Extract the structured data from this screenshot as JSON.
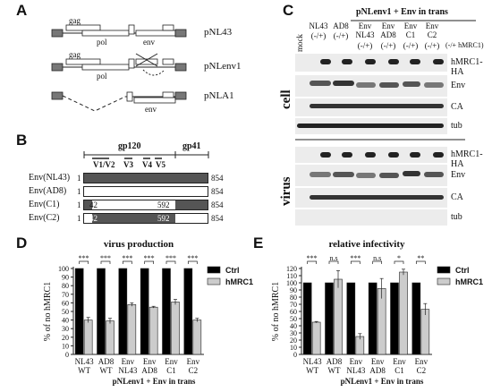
{
  "panels": {
    "A": "A",
    "B": "B",
    "C": "C",
    "D": "D",
    "E": "E"
  },
  "panelA": {
    "constructs": [
      {
        "name": "pNL43",
        "labels": [
          "gag",
          "pol",
          "env"
        ]
      },
      {
        "name": "pNLenv1",
        "labels": [
          "gag",
          "pol"
        ]
      },
      {
        "name": "pNLA1",
        "labels": [
          "env"
        ]
      }
    ]
  },
  "panelB": {
    "top_labels": {
      "gp120": "gp120",
      "gp41": "gp41",
      "v12": "V1/V2",
      "v3": "V3",
      "v4": "V4",
      "v5": "V5"
    },
    "rows": [
      {
        "name": "Env(NL43)",
        "start": "1",
        "end": "854",
        "segment_fill": "#555555"
      },
      {
        "name": "Env(AD8)",
        "start": "1",
        "end": "854",
        "segment_fill": "#ffffff"
      },
      {
        "name": "Env(C1)",
        "start": "1",
        "end": "854",
        "mid_start": "42",
        "mid_end": "592"
      },
      {
        "name": "Env(C2)",
        "start": "1",
        "end": "854",
        "mid_start": "42",
        "mid_end": "592"
      }
    ]
  },
  "panelC": {
    "header": "pNLenv1 + Env in trans",
    "lanes": [
      {
        "top": "",
        "bottom": "mock"
      },
      {
        "top": "NL43",
        "bottom": "(-/+)"
      },
      {
        "top": "AD8",
        "bottom": "(-/+)"
      },
      {
        "top": "Env NL43",
        "bottom": "(-/+)"
      },
      {
        "top": "Env AD8",
        "bottom": "(-/+)"
      },
      {
        "top": "Env C1",
        "bottom": "(-/+)"
      },
      {
        "top": "Env C2",
        "bottom": "(-/+)"
      }
    ],
    "lane_suffix": "(-/+ hMRC1)",
    "sections": {
      "cell": "cell",
      "virus": "virus"
    },
    "cell_bands": [
      "hMRC1-HA",
      "Env",
      "CA",
      "tub"
    ],
    "virus_bands": [
      "hMRC1-HA",
      "Env",
      "CA",
      "tub"
    ]
  },
  "chart_data": [
    {
      "type": "bar",
      "title": "virus production",
      "ylabel": "% of no hMRC1",
      "ylim": [
        0,
        100
      ],
      "yticks": [
        0,
        10,
        20,
        30,
        40,
        50,
        60,
        70,
        80,
        90,
        100
      ],
      "categories": [
        "NL43 WT",
        "AD8 WT",
        "Env NL43",
        "Env AD8",
        "Env C1",
        "Env C2"
      ],
      "series": [
        {
          "name": "Ctrl",
          "color": "#000000",
          "values": [
            100,
            100,
            100,
            100,
            100,
            100
          ]
        },
        {
          "name": "hMRC1",
          "color": "#cccccc",
          "values": [
            40,
            39,
            58,
            55,
            61,
            40
          ],
          "errors": [
            3,
            3,
            2,
            1,
            3,
            2
          ]
        }
      ],
      "significance": [
        "***",
        "***",
        "***",
        "***",
        "***",
        "***"
      ],
      "xfooter": "pNLenv1 + Env in trans"
    },
    {
      "type": "bar",
      "title": "relative infectivity",
      "ylabel": "% of no hMRC1",
      "ylim": [
        0,
        120
      ],
      "yticks": [
        0,
        10,
        20,
        30,
        40,
        50,
        60,
        70,
        80,
        90,
        100,
        110,
        120
      ],
      "categories": [
        "NL43 WT",
        "AD8 WT",
        "Env NL43",
        "Env AD8",
        "Env C1",
        "Env C2"
      ],
      "series": [
        {
          "name": "Ctrl",
          "color": "#000000",
          "values": [
            100,
            100,
            100,
            100,
            100,
            100
          ]
        },
        {
          "name": "hMRC1",
          "color": "#cccccc",
          "values": [
            45,
            105,
            25,
            92,
            115,
            63
          ],
          "errors": [
            1,
            12,
            4,
            14,
            4,
            8
          ]
        }
      ],
      "significance": [
        "***",
        "n.s",
        "***",
        "n.s",
        "*",
        "**"
      ],
      "xfooter": "pNLenv1 + Env in trans"
    }
  ]
}
